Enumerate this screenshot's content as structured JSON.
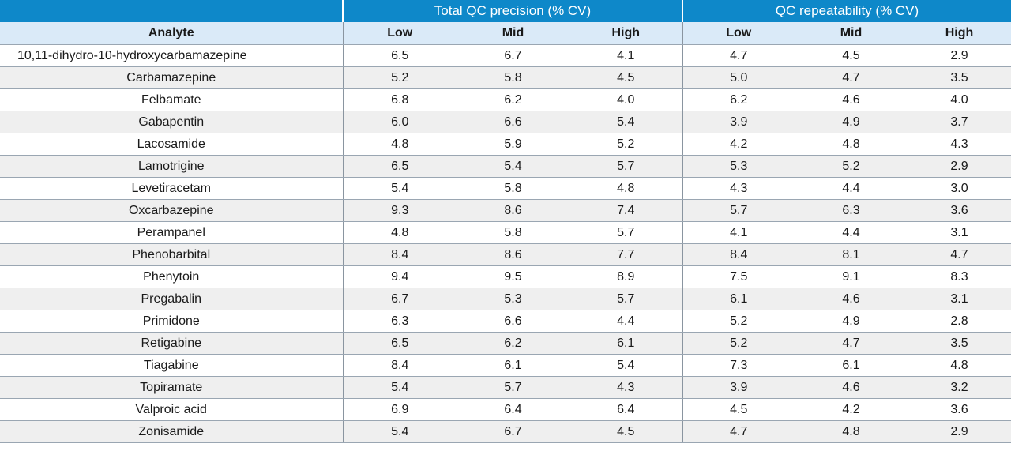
{
  "table": {
    "groups": [
      "Total QC precision (% CV)",
      "QC repeatability (% CV)"
    ],
    "analyte_header": "Analyte",
    "sub_headers": [
      "Low",
      "Mid",
      "High",
      "Low",
      "Mid",
      "High"
    ],
    "rows": [
      {
        "analyte": "10,11-dihydro-10-hydroxycarbamazepine",
        "values": [
          "6.5",
          "6.7",
          "4.1",
          "4.7",
          "4.5",
          "2.9"
        ]
      },
      {
        "analyte": "Carbamazepine",
        "values": [
          "5.2",
          "5.8",
          "4.5",
          "5.0",
          "4.7",
          "3.5"
        ]
      },
      {
        "analyte": "Felbamate",
        "values": [
          "6.8",
          "6.2",
          "4.0",
          "6.2",
          "4.6",
          "4.0"
        ]
      },
      {
        "analyte": "Gabapentin",
        "values": [
          "6.0",
          "6.6",
          "5.4",
          "3.9",
          "4.9",
          "3.7"
        ]
      },
      {
        "analyte": "Lacosamide",
        "values": [
          "4.8",
          "5.9",
          "5.2",
          "4.2",
          "4.8",
          "4.3"
        ]
      },
      {
        "analyte": "Lamotrigine",
        "values": [
          "6.5",
          "5.4",
          "5.7",
          "5.3",
          "5.2",
          "2.9"
        ]
      },
      {
        "analyte": "Levetiracetam",
        "values": [
          "5.4",
          "5.8",
          "4.8",
          "4.3",
          "4.4",
          "3.0"
        ]
      },
      {
        "analyte": "Oxcarbazepine",
        "values": [
          "9.3",
          "8.6",
          "7.4",
          "5.7",
          "6.3",
          "3.6"
        ]
      },
      {
        "analyte": "Perampanel",
        "values": [
          "4.8",
          "5.8",
          "5.7",
          "4.1",
          "4.4",
          "3.1"
        ]
      },
      {
        "analyte": "Phenobarbital",
        "values": [
          "8.4",
          "8.6",
          "7.7",
          "8.4",
          "8.1",
          "4.7"
        ]
      },
      {
        "analyte": "Phenytoin",
        "values": [
          "9.4",
          "9.5",
          "8.9",
          "7.5",
          "9.1",
          "8.3"
        ]
      },
      {
        "analyte": "Pregabalin",
        "values": [
          "6.7",
          "5.3",
          "5.7",
          "6.1",
          "4.6",
          "3.1"
        ]
      },
      {
        "analyte": "Primidone",
        "values": [
          "6.3",
          "6.6",
          "4.4",
          "5.2",
          "4.9",
          "2.8"
        ]
      },
      {
        "analyte": "Retigabine",
        "values": [
          "6.5",
          "6.2",
          "6.1",
          "5.2",
          "4.7",
          "3.5"
        ]
      },
      {
        "analyte": "Tiagabine",
        "values": [
          "8.4",
          "6.1",
          "5.4",
          "7.3",
          "6.1",
          "4.8"
        ]
      },
      {
        "analyte": "Topiramate",
        "values": [
          "5.4",
          "5.7",
          "4.3",
          "3.9",
          "4.6",
          "3.2"
        ]
      },
      {
        "analyte": "Valproic acid",
        "values": [
          "6.9",
          "6.4",
          "6.4",
          "4.5",
          "4.2",
          "3.6"
        ]
      },
      {
        "analyte": "Zonisamide",
        "values": [
          "5.4",
          "6.7",
          "4.5",
          "4.7",
          "4.8",
          "2.9"
        ]
      }
    ]
  },
  "colors": {
    "header_blue": "#0e88c9",
    "subheader_light_blue": "#daeaf8",
    "row_stripe_gray": "#efefef"
  }
}
